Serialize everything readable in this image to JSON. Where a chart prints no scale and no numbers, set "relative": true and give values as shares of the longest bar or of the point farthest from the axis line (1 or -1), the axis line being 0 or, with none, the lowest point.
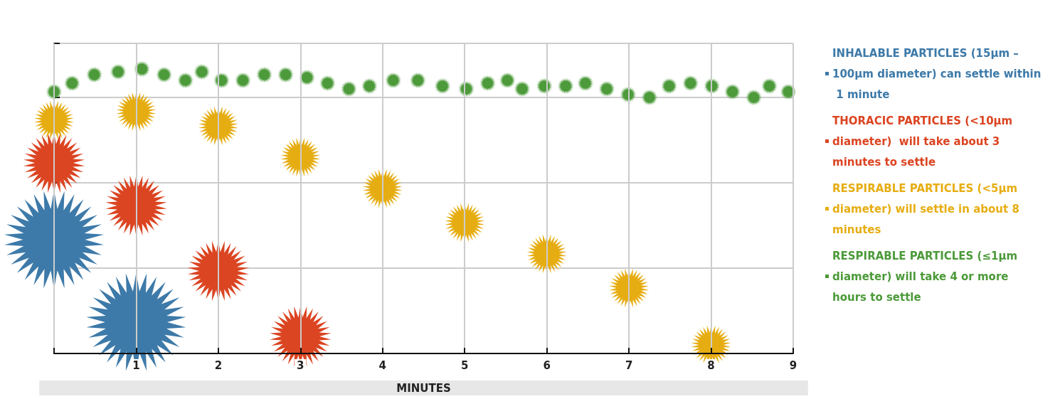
{
  "chart_data": {
    "type": "bubble",
    "relative": true,
    "xlabel": "MINUTES",
    "xlim": [
      0,
      9
    ],
    "xticks": [
      {
        "value": 0,
        "label": null
      },
      1,
      2,
      3,
      4,
      5,
      6,
      7,
      8,
      9
    ],
    "grid": true,
    "legend": "right",
    "marker": "star",
    "series": [
      {
        "name": "INHALABLE PARTICLES (15µm – 100µm diameter) can settle within 1 minute",
        "color": "#3d7aa9",
        "x": [
          0,
          1
        ],
        "values": [
          0.4,
          0.11
        ],
        "sizes": [
          1,
          1
        ]
      },
      {
        "name": "THORACIC PARTICLES (<10µm diameter)  will take about 3 minutes to settle",
        "color": "#db4522",
        "x": [
          0,
          1,
          2,
          3
        ],
        "values": [
          0.67,
          0.52,
          0.29,
          0.06
        ],
        "sizes": [
          0.38,
          0.38,
          0.38,
          0.38
        ]
      },
      {
        "name": "RESPIRABLE PARTICLES (<5µm diameter) will settle in about 8 minutes",
        "color": "#e6ad12",
        "x": [
          0,
          1,
          2,
          3,
          4,
          5,
          6,
          7,
          8
        ],
        "values": [
          0.82,
          0.85,
          0.8,
          0.69,
          0.58,
          0.46,
          0.35,
          0.23,
          0.03
        ],
        "sizes": [
          0.16,
          0.16,
          0.16,
          0.16,
          0.16,
          0.16,
          0.16,
          0.16,
          0.16
        ]
      },
      {
        "name": "RESPIRABLE PARTICLES (≤1µm diameter) will take 4 or more hours to settle",
        "color": "#4c9a3a",
        "x": [
          0,
          0.22,
          0.49,
          0.78,
          1.07,
          1.34,
          1.6,
          1.8,
          2.04,
          2.3,
          2.56,
          2.82,
          3.08,
          3.33,
          3.59,
          3.84,
          4.13,
          4.43,
          4.73,
          5.02,
          5.28,
          5.52,
          5.7,
          5.97,
          6.23,
          6.47,
          6.73,
          6.99,
          7.25,
          7.49,
          7.75,
          8.01,
          8.26,
          8.52,
          8.71,
          8.94
        ],
        "values": [
          0.92,
          0.95,
          0.98,
          0.99,
          1.0,
          0.98,
          0.96,
          0.99,
          0.96,
          0.96,
          0.98,
          0.98,
          0.97,
          0.95,
          0.93,
          0.94,
          0.96,
          0.96,
          0.94,
          0.93,
          0.95,
          0.96,
          0.93,
          0.94,
          0.94,
          0.95,
          0.93,
          0.91,
          0.9,
          0.94,
          0.95,
          0.94,
          0.92,
          0.9,
          0.94,
          0.92
        ],
        "sizes": [
          0.026,
          0.026,
          0.026,
          0.026,
          0.026,
          0.026,
          0.026,
          0.026,
          0.026,
          0.026,
          0.026,
          0.026,
          0.026,
          0.026,
          0.026,
          0.026,
          0.026,
          0.026,
          0.026,
          0.026,
          0.026,
          0.026,
          0.026,
          0.026,
          0.026,
          0.026,
          0.026,
          0.026,
          0.026,
          0.026,
          0.026,
          0.026,
          0.026,
          0.026,
          0.026,
          0.026
        ]
      }
    ]
  }
}
